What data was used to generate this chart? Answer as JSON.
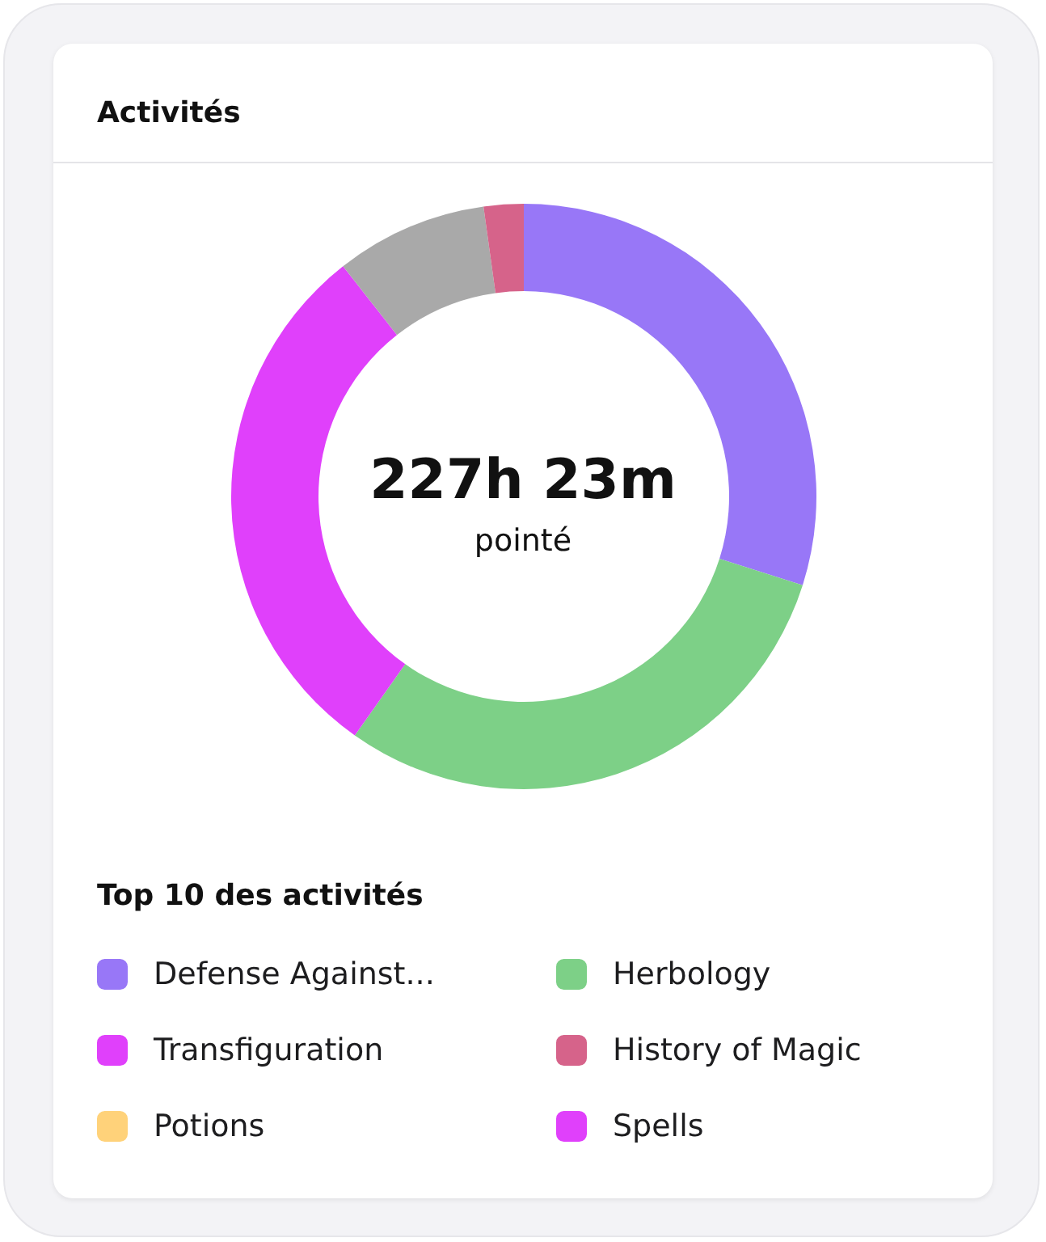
{
  "chart_data": {
    "type": "donut",
    "title": "Activités",
    "categories": [
      "Defense Against...",
      "Herbology",
      "Transfiguration",
      null,
      "History of Magic",
      "Potions",
      "Spells"
    ],
    "values": [
      29.9,
      29.9,
      29.6,
      8.4,
      2.2,
      0,
      0
    ],
    "colors": [
      "#9877f7",
      "#7dd087",
      "#e040fb",
      "#a9a9a9",
      "#d6638a",
      "#ffd27a",
      "#e040fb"
    ],
    "legend_title": "Top 10 des activités",
    "legend": "bottom",
    "annotations": [
      "227h 23m",
      "pointé"
    ]
  }
}
